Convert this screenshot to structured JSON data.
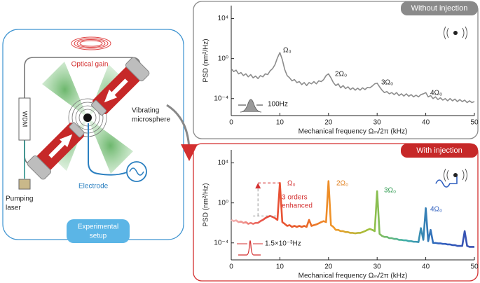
{
  "diagram": {
    "optical_gain": "Optical gain",
    "wdm": "WDM",
    "vibrating": [
      "Vibrating",
      "microsphere"
    ],
    "electrode": "Electrode",
    "pumping_laser": [
      "Pumping",
      "laser"
    ],
    "setup": [
      "Experimental",
      "setup"
    ]
  },
  "chart_data": [
    {
      "type": "line",
      "panel_label": "Without injection",
      "panel_color": "#8a8a8a",
      "frame_color": "#8a8a8a",
      "xlabel": "Mechanical frequency Ωₘ/2π (kHz)",
      "ylabel": "PSD (nm²/Hz)",
      "log_y": true,
      "xlim": [
        0,
        50
      ],
      "xticks": [
        0,
        10,
        20,
        30,
        40,
        50
      ],
      "ylim": [
        2e-06,
        200000.0
      ],
      "yticks": [
        {
          "value": 0.0001,
          "label": "10⁻⁴"
        },
        {
          "value": 1,
          "label": "10⁰"
        },
        {
          "value": 10000,
          "label": "10⁴"
        }
      ],
      "color": "#8c8c8c",
      "x": [
        0,
        0.5,
        1,
        1.5,
        2,
        2.5,
        3,
        3.5,
        4,
        4.5,
        5,
        5.5,
        6,
        6.5,
        7,
        7.5,
        8,
        8.5,
        9,
        9.5,
        10,
        10.5,
        11,
        11.5,
        12,
        12.5,
        13,
        13.5,
        14,
        14.5,
        15,
        15.5,
        16,
        16.5,
        17,
        17.5,
        18,
        18.5,
        19,
        19.5,
        20,
        20.5,
        21,
        21.5,
        22,
        22.5,
        23,
        23.5,
        24,
        24.5,
        25,
        25.5,
        26,
        26.5,
        27,
        27.5,
        28,
        28.5,
        29,
        29.5,
        30,
        30.5,
        31,
        31.5,
        32,
        32.5,
        33,
        33.5,
        34,
        34.5,
        35,
        35.5,
        36,
        36.5,
        37,
        37.5,
        38,
        38.5,
        39,
        39.5,
        40,
        40.5,
        41,
        41.5,
        42,
        42.5,
        43,
        43.5,
        44,
        44.5,
        45,
        45.5,
        46,
        46.5,
        47,
        47.5,
        48,
        48.5,
        49,
        49.5,
        50
      ],
      "values": [
        0.1,
        0.05,
        0.07,
        0.03,
        0.04,
        0.02,
        0.03,
        0.015,
        0.025,
        0.012,
        0.018,
        0.01,
        0.02,
        0.015,
        0.03,
        0.025,
        0.06,
        0.1,
        0.25,
        1.2,
        4,
        0.8,
        0.08,
        0.02,
        0.012,
        0.006,
        0.008,
        0.004,
        0.005,
        0.0025,
        0.004,
        0.002,
        0.004,
        0.003,
        0.005,
        0.003,
        0.006,
        0.005,
        0.008,
        0.02,
        0.03,
        0.012,
        0.004,
        0.002,
        0.003,
        0.0012,
        0.002,
        0.001,
        0.0015,
        0.0008,
        0.0012,
        0.0007,
        0.0011,
        0.0007,
        0.0012,
        0.0008,
        0.0013,
        0.0012,
        0.0018,
        0.003,
        0.0035,
        0.0015,
        0.0007,
        0.0004,
        0.0005,
        0.0003,
        0.0004,
        0.00025,
        0.0004,
        0.0002,
        0.0003,
        0.00018,
        0.0003,
        0.00017,
        0.00025,
        0.00015,
        0.00022,
        0.00015,
        0.00025,
        0.0003,
        0.0004,
        0.00015,
        0.0002,
        0.0001,
        0.00015,
        8e-05,
        0.00012,
        7e-05,
        0.0001,
        6e-05,
        0.0001,
        6e-05,
        9e-05,
        5e-05,
        8e-05,
        5e-05,
        7e-05,
        4e-05,
        6e-05,
        4e-05,
        5e-05
      ],
      "annotations": [
        {
          "text": "Ω₀",
          "color": "#222"
        },
        {
          "text": "2Ω₀",
          "color": "#222"
        },
        {
          "text": "3Ω₀",
          "color": "#222"
        },
        {
          "text": "4Ω₀",
          "color": "#222"
        },
        {
          "text": "100Hz",
          "color": "#222"
        }
      ]
    },
    {
      "type": "line",
      "panel_label": "With injection",
      "panel_color": "#c62828",
      "frame_color": "#d32f2f",
      "xlabel": "Mechanical frequency Ωₘ/2π (kHz)",
      "ylabel": "PSD (nm²/Hz)",
      "log_y": true,
      "xlim": [
        0,
        50
      ],
      "xticks": [
        0,
        10,
        20,
        30,
        40,
        50
      ],
      "ylim": [
        2e-06,
        200000.0
      ],
      "yticks": [
        {
          "value": 0.0001,
          "label": "10⁻⁴"
        },
        {
          "value": 1,
          "label": "10⁰"
        },
        {
          "value": 10000,
          "label": "10⁴"
        }
      ],
      "gradient": [
        "#f3b9b9",
        "#e8493c",
        "#e8602a",
        "#f09a28",
        "#9cc23c",
        "#3fb0a8",
        "#2f5fbf",
        "#3a4fb0"
      ],
      "x": [
        0,
        0.5,
        1,
        1.5,
        2,
        2.5,
        3,
        3.5,
        4,
        4.5,
        5,
        5.5,
        6,
        6.5,
        7,
        7.5,
        8,
        8.5,
        9,
        9.5,
        10,
        10.5,
        11,
        11.5,
        12,
        12.5,
        13,
        13.5,
        14,
        14.5,
        15,
        15.5,
        16,
        16.5,
        17,
        17.5,
        18,
        18.5,
        19,
        19.5,
        20,
        20.5,
        21,
        21.5,
        22,
        22.5,
        23,
        23.5,
        24,
        24.5,
        25,
        25.5,
        26,
        26.5,
        27,
        27.5,
        28,
        28.5,
        29,
        29.5,
        30,
        30.5,
        31,
        31.5,
        32,
        32.5,
        33,
        33.5,
        34,
        34.5,
        35,
        35.5,
        36,
        36.5,
        37,
        37.5,
        38,
        38.5,
        39,
        39.5,
        40,
        40.5,
        41,
        41.5,
        42,
        42.5,
        43,
        43.5,
        44,
        44.5,
        45,
        45.5,
        46,
        46.5,
        47,
        47.5,
        48,
        48.5,
        49,
        49.5,
        50
      ],
      "values": [
        0.02,
        0.015,
        0.018,
        0.012,
        0.014,
        0.01,
        0.012,
        0.008,
        0.01,
        0.008,
        0.01,
        0.01,
        0.015,
        0.02,
        0.03,
        0.04,
        0.05,
        0.04,
        0.03,
        0.02,
        100,
        0.012,
        0.008,
        0.005,
        0.006,
        0.004,
        0.005,
        0.004,
        0.005,
        0.004,
        0.005,
        0.004,
        0.02,
        0.005,
        0.006,
        0.007,
        0.009,
        0.012,
        0.015,
        0.012,
        150,
        0.006,
        0.004,
        0.002,
        0.002,
        0.0015,
        0.0015,
        0.0012,
        0.0012,
        0.001,
        0.001,
        0.0009,
        0.001,
        0.001,
        0.0012,
        0.0015,
        0.002,
        0.0025,
        0.002,
        0.0015,
        15,
        0.0008,
        0.0005,
        0.0004,
        0.0004,
        0.0003,
        0.0003,
        0.00025,
        0.00025,
        0.0002,
        0.0002,
        0.00018,
        0.00018,
        0.00015,
        0.00015,
        0.00013,
        0.00013,
        0.00012,
        0.003,
        0.0002,
        0.3,
        0.00015,
        0.002,
        0.0001,
        0.0001,
        9e-05,
        9e-05,
        8e-05,
        8e-05,
        7e-05,
        7e-05,
        6e-05,
        6e-05,
        5e-05,
        5e-05,
        5e-05,
        0.0015,
        5e-05,
        4e-05,
        4e-05,
        4e-05
      ],
      "annotations": [
        {
          "text": "Ω₀",
          "color": "#d32f2f"
        },
        {
          "text": [
            "3 orders",
            "enhanced"
          ],
          "color": "#d32f2f"
        },
        {
          "text": "2Ω₀",
          "color": "#e07b16"
        },
        {
          "text": "3Ω₀",
          "color": "#2e9a4f"
        },
        {
          "text": "4Ω₀",
          "color": "#2f5fbf"
        },
        {
          "text": "1.5×10⁻³Hz",
          "color": "#222"
        }
      ]
    }
  ]
}
